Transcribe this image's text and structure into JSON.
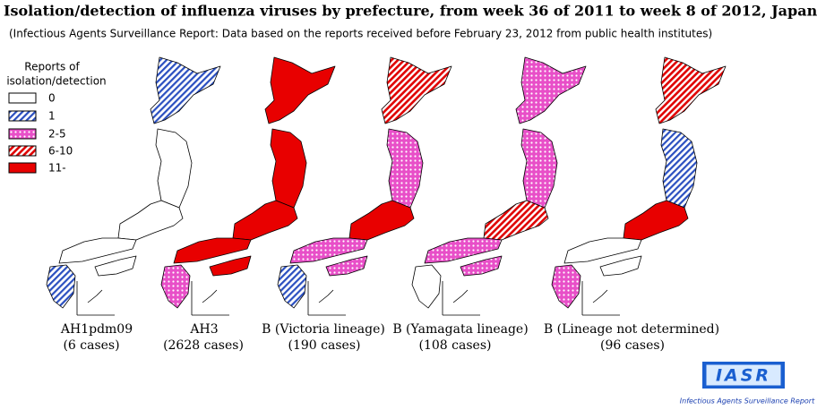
{
  "title": "Isolation/detection of influenza viruses by prefecture, from week 36 of 2011 to week 8 of 2012, Japan",
  "subtitle": "(Infectious Agents Surveillance Report: Data based on the reports received before February 23, 2012 from public health institutes)",
  "legend": {
    "title_lines": [
      "Reports of",
      "isolation/detection"
    ],
    "items": [
      "0",
      "1",
      "2-5",
      "6-10",
      "11-"
    ]
  },
  "maps": [
    {
      "label": "AH1pdm09",
      "cases": "(6 cases)"
    },
    {
      "label": "AH3",
      "cases": "(2628 cases)"
    },
    {
      "label": "B (Victoria lineage)",
      "cases": "(190 cases)"
    },
    {
      "label": "B (Yamagata lineage)",
      "cases": "(108 cases)"
    },
    {
      "label": "B (Lineage not determined)",
      "cases": "(96 cases)"
    }
  ],
  "logo": {
    "text": "IASR",
    "caption": "Infectious Agents Surveillance Report"
  }
}
